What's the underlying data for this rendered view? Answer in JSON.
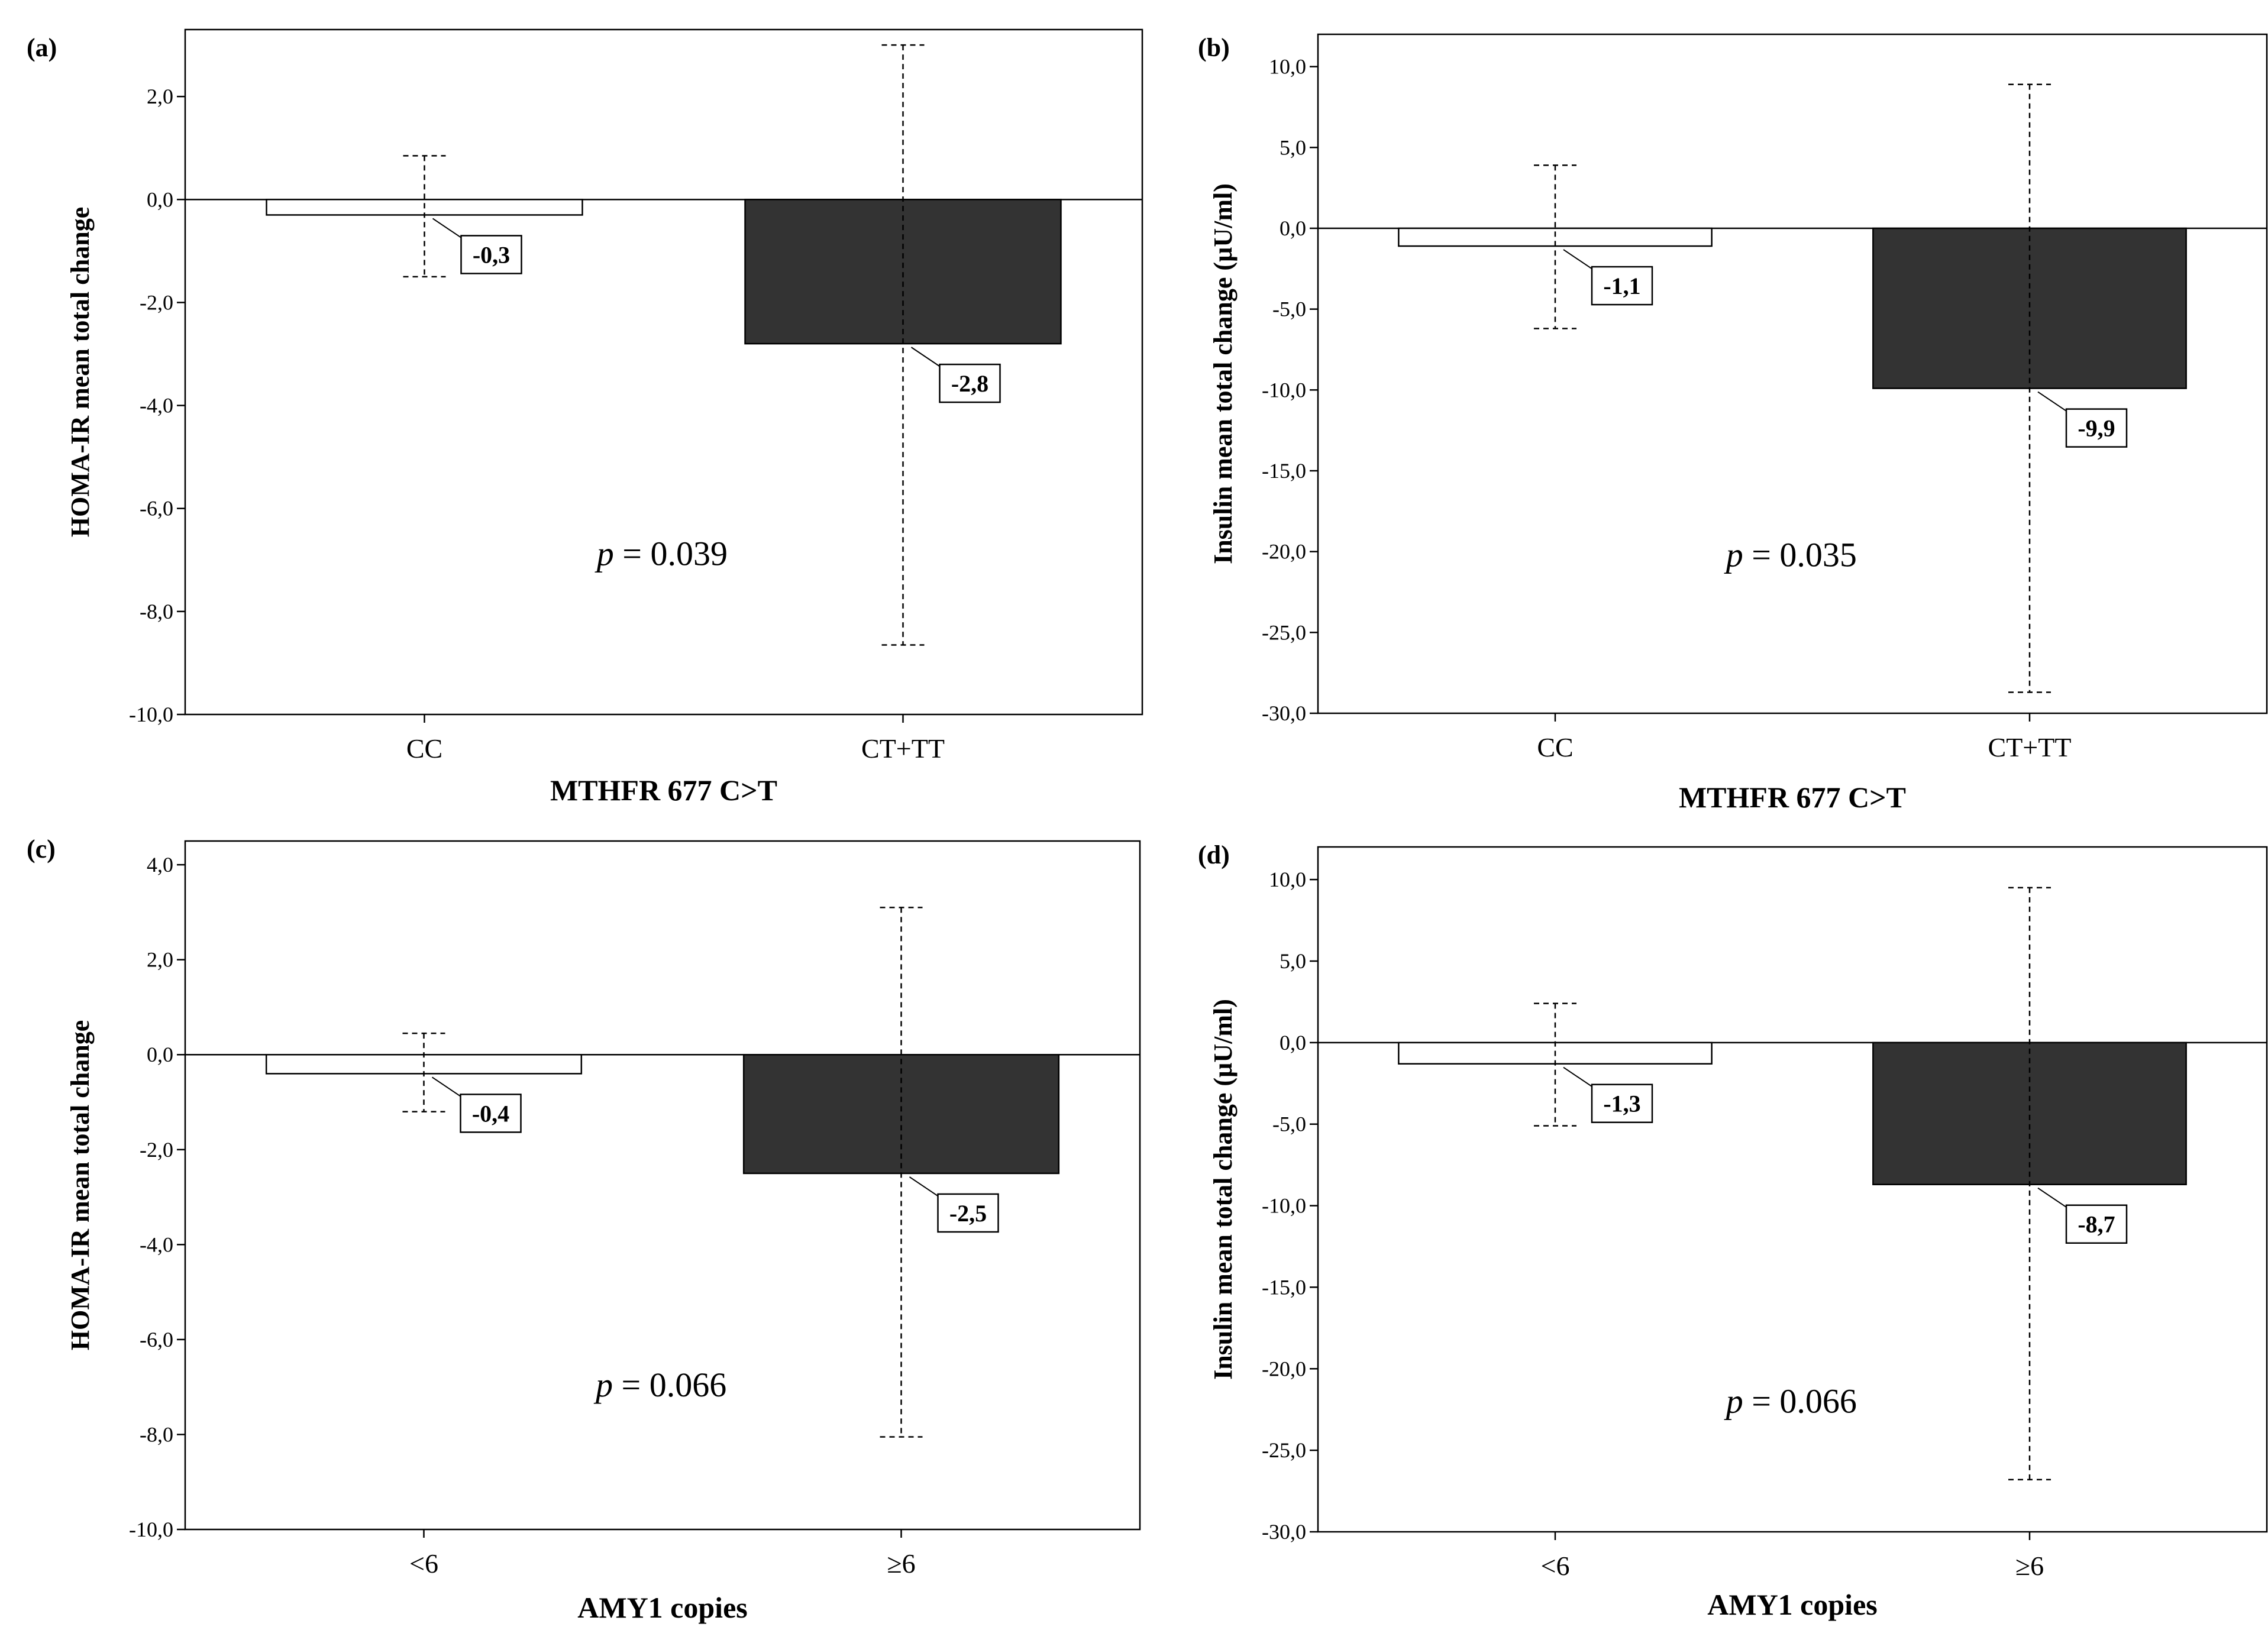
{
  "chart_data": [
    {
      "panel": "(a)",
      "type": "bar",
      "title": "",
      "xlabel": "MTHFR 677 C>T",
      "ylabel": "HOMA-IR mean total change",
      "categories": [
        "CC",
        "CT+TT"
      ],
      "values": [
        -0.3,
        -2.8
      ],
      "value_labels": [
        "-0,3",
        "-2,8"
      ],
      "error_low": [
        -1.5,
        -8.65
      ],
      "error_high": [
        0.85,
        3.0
      ],
      "bar_colors": [
        "#ffffff",
        "#333333"
      ],
      "ylim": [
        -10,
        3.3
      ],
      "yticks": [
        2,
        0,
        -2,
        -4,
        -6,
        -8,
        -10
      ],
      "ytick_labels": [
        "2,0",
        "0,0",
        "-2,0",
        "-4,0",
        "-6,0",
        "-8,0",
        "-10,0"
      ],
      "annotation": {
        "p": "p",
        "rest": " = 0.039",
        "x_cat": 0.43,
        "y_value": -7.1
      }
    },
    {
      "panel": "(b)",
      "type": "bar",
      "title": "",
      "xlabel": "MTHFR 677 C>T",
      "ylabel": "Insulin mean total change (µU/ml)",
      "categories": [
        "CC",
        "CT+TT"
      ],
      "values": [
        -1.1,
        -9.9
      ],
      "value_labels": [
        "-1,1",
        "-9,9"
      ],
      "error_low": [
        -6.2,
        -28.7
      ],
      "error_high": [
        3.9,
        8.9
      ],
      "bar_colors": [
        "#ffffff",
        "#333333"
      ],
      "ylim": [
        -30,
        12
      ],
      "yticks": [
        10,
        5,
        0,
        -5,
        -10,
        -15,
        -20,
        -25,
        -30
      ],
      "ytick_labels": [
        "10,0",
        "5,0",
        "0,0",
        "-5,0",
        "-10,0",
        "-15,0",
        "-20,0",
        "-25,0",
        "-30,0"
      ],
      "annotation": {
        "p": "p",
        "rest": " = 0.035",
        "x_cat": 0.43,
        "y_value": -20.9
      }
    },
    {
      "panel": "(c)",
      "type": "bar",
      "title": "",
      "xlabel": "AMY1 copies",
      "ylabel": "HOMA-IR mean total change",
      "categories": [
        "<6",
        "≥6"
      ],
      "values": [
        -0.4,
        -2.5
      ],
      "value_labels": [
        "-0,4",
        "-2,5"
      ],
      "error_low": [
        -1.2,
        -8.05
      ],
      "error_high": [
        0.45,
        3.1
      ],
      "bar_colors": [
        "#ffffff",
        "#333333"
      ],
      "ylim": [
        -10,
        4.5
      ],
      "yticks": [
        4,
        2,
        0,
        -2,
        -4,
        -6,
        -8,
        -10
      ],
      "ytick_labels": [
        "4,0",
        "2,0",
        "0,0",
        "-2,0",
        "-4,0",
        "-6,0",
        "-8,0",
        "-10,0"
      ],
      "annotation": {
        "p": "p",
        "rest": " = 0.066",
        "x_cat": 0.43,
        "y_value": -7.2
      }
    },
    {
      "panel": "(d)",
      "type": "bar",
      "title": "",
      "xlabel": "AMY1 copies",
      "ylabel": "Insulin mean total change (µU/ml)",
      "categories": [
        "<6",
        "≥6"
      ],
      "values": [
        -1.3,
        -8.7
      ],
      "value_labels": [
        "-1,3",
        "-8,7"
      ],
      "error_low": [
        -5.1,
        -26.8
      ],
      "error_high": [
        2.4,
        9.5
      ],
      "bar_colors": [
        "#ffffff",
        "#333333"
      ],
      "ylim": [
        -30,
        12
      ],
      "yticks": [
        10,
        5,
        0,
        -5,
        -10,
        -15,
        -20,
        -25,
        -30
      ],
      "ytick_labels": [
        "10,0",
        "5,0",
        "0,0",
        "-5,0",
        "-10,0",
        "-15,0",
        "-20,0",
        "-25,0",
        "-30,0"
      ],
      "annotation": {
        "p": "p",
        "rest": " = 0.066",
        "x_cat": 0.43,
        "y_value": -22.7
      }
    }
  ]
}
